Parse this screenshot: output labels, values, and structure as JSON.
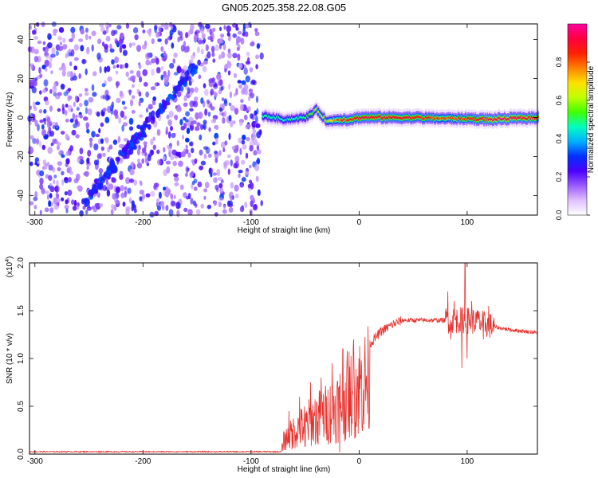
{
  "title": "GN05.2025.358.22.08.G05",
  "chart_data": [
    {
      "type": "heatmap",
      "name": "spectrogram",
      "xlabel": "Height of straight line (km)",
      "ylabel": "Frequency (Hz)",
      "xlim": [
        -305,
        165
      ],
      "ylim": [
        -50,
        48
      ],
      "x_ticks": [
        -300,
        -200,
        -100,
        0,
        100
      ],
      "x_tick_labels": [
        "-300",
        "-200",
        "-100",
        "0",
        "100"
      ],
      "y_ticks": [
        -40,
        -20,
        0,
        20,
        40
      ],
      "y_tick_labels": [
        "-40",
        "-20",
        "0",
        "20",
        "40"
      ],
      "noise_region_x": [
        -305,
        -90
      ],
      "diagonal_track": [
        [
          -255,
          -44
        ],
        [
          -150,
          27
        ]
      ],
      "signal_band": {
        "x": [
          -90,
          -70,
          -50,
          -40,
          -30,
          -20,
          -10,
          0,
          20,
          50,
          80,
          100,
          120,
          140,
          165
        ],
        "center_hz": [
          1,
          -1,
          0,
          4,
          -2,
          -1,
          -1,
          0,
          0,
          0,
          -0.5,
          -0.5,
          -1,
          -0.5,
          0
        ],
        "intensity": [
          0.5,
          0.45,
          0.5,
          0.6,
          0.6,
          0.8,
          0.85,
          0.9,
          0.9,
          0.88,
          0.8,
          0.85,
          0.95,
          0.95,
          0.9
        ]
      },
      "colorbar": {
        "label": "Normalized spectral amplitude",
        "range": [
          0,
          1
        ],
        "ticks": [
          0.0,
          0.2,
          0.4,
          0.6,
          0.8
        ],
        "tick_labels": [
          "0.0",
          "0.2",
          "0.4",
          "0.6",
          "0.8"
        ],
        "colors": [
          "#ffffff",
          "#e0c0ff",
          "#9a5cff",
          "#4a00ff",
          "#0030ff",
          "#00b0ff",
          "#00ffc0",
          "#40ff00",
          "#c0ff00",
          "#ffe000",
          "#ff8000",
          "#ff2000",
          "#ff0040",
          "#ff00a0"
        ]
      }
    },
    {
      "type": "line",
      "name": "snr",
      "xlabel": "Height of straight line (km)",
      "ylabel": "SNR (10 * v/v)",
      "y_exponent": "(x10",
      "y_exponent_power": "4",
      "y_exponent_close": ")",
      "xlim": [
        -305,
        165
      ],
      "ylim": [
        0,
        2.0
      ],
      "x_ticks": [
        -300,
        -200,
        -100,
        0,
        100
      ],
      "x_tick_labels": [
        "-300",
        "-200",
        "-100",
        "0",
        "100"
      ],
      "y_ticks": [
        0.0,
        0.5,
        1.0,
        1.5,
        2.0
      ],
      "y_tick_labels": [
        "0.0",
        "0.5",
        "1.0",
        "1.5",
        "2.0"
      ],
      "color": "#e8302c",
      "envelope": {
        "x": [
          -305,
          -72,
          -70,
          -60,
          -50,
          -40,
          -30,
          -20,
          -10,
          0,
          10,
          20,
          30,
          40,
          60,
          80,
          90,
          100,
          110,
          125,
          140,
          165
        ],
        "y": [
          0.025,
          0.025,
          0.2,
          0.35,
          0.45,
          0.55,
          0.62,
          0.75,
          0.92,
          1.05,
          1.15,
          1.28,
          1.35,
          1.4,
          1.4,
          1.4,
          1.4,
          1.4,
          1.38,
          1.33,
          1.3,
          1.27
        ]
      },
      "spikes": [
        [
          -65,
          0.45
        ],
        [
          -55,
          0.6
        ],
        [
          -45,
          0.75
        ],
        [
          -35,
          0.8
        ],
        [
          -25,
          0.95
        ],
        [
          -15,
          1.1
        ],
        [
          -5,
          1.2
        ],
        [
          -62,
          0.05
        ],
        [
          -50,
          0.08
        ],
        [
          -38,
          0.1
        ],
        [
          -28,
          0.15
        ],
        [
          -18,
          0.02
        ],
        [
          -8,
          0.4
        ],
        [
          82,
          1.7
        ],
        [
          85,
          1.2
        ],
        [
          88,
          1.6
        ],
        [
          95,
          0.9
        ],
        [
          98,
          2.0
        ],
        [
          100,
          1.0
        ],
        [
          104,
          1.6
        ],
        [
          110,
          1.5
        ],
        [
          115,
          1.2
        ],
        [
          120,
          1.55
        ]
      ]
    }
  ]
}
